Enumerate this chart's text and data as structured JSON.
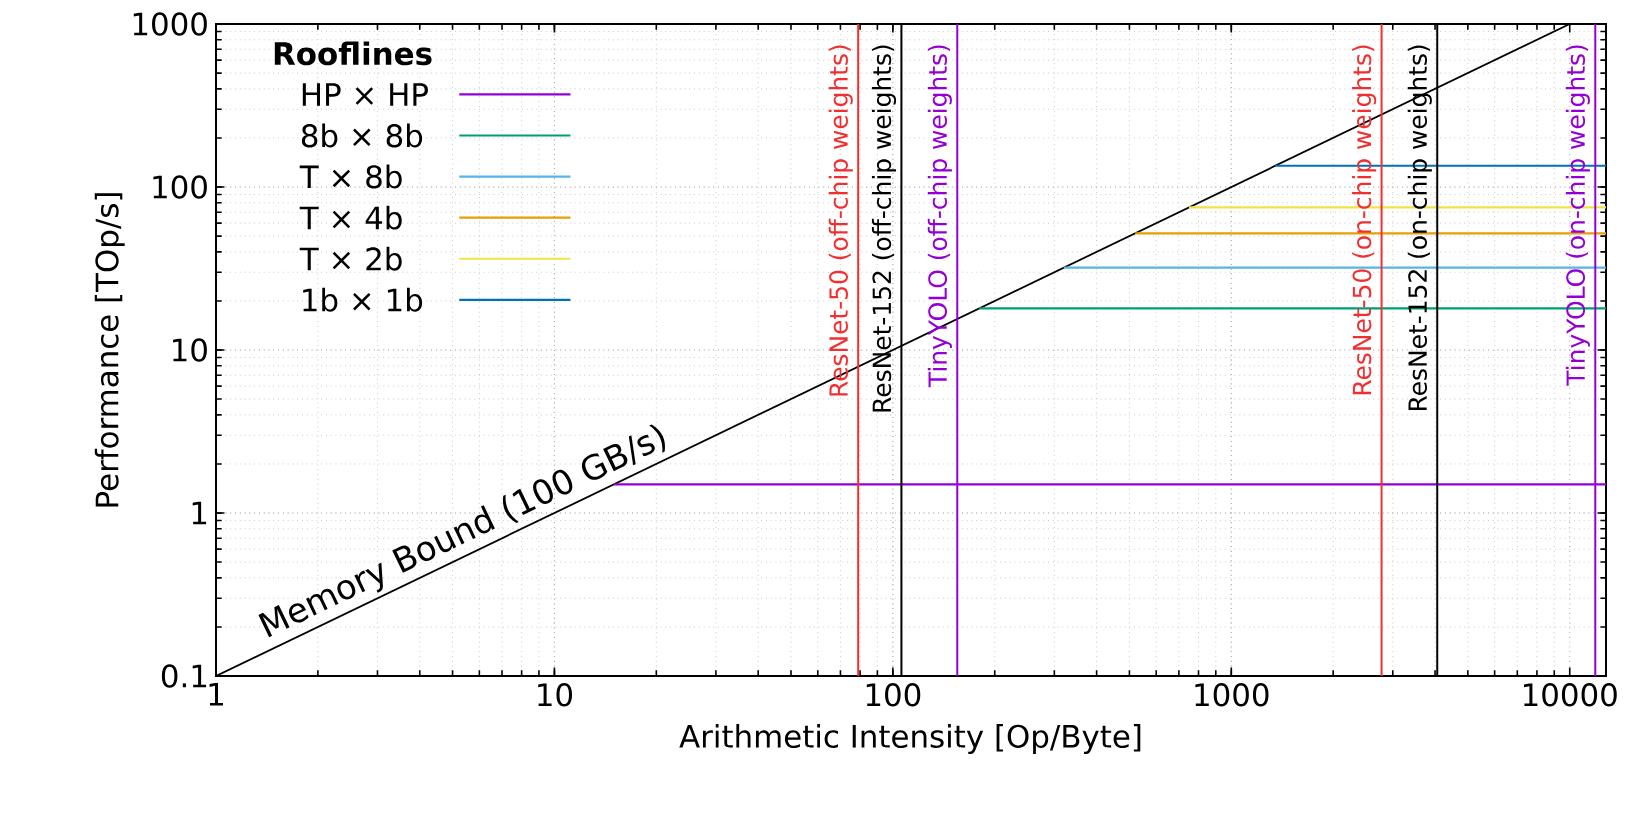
{
  "chart_data": {
    "type": "line",
    "xlabel": "Arithmetic Intensity [Op/Byte]",
    "ylabel": "Performance [TOp/s]",
    "legend_title": "Rooflines",
    "log": "xy",
    "grid": true,
    "legend": "top left",
    "marker": "none",
    "line_style": "solid",
    "xlim": [
      1,
      12800
    ],
    "ylim": [
      0.1,
      1000
    ],
    "xticks": [
      1,
      10,
      100,
      1000,
      10000
    ],
    "yticks": [
      0.1,
      1,
      10,
      100,
      1000
    ],
    "series": [
      {
        "name": "Memory Bound (100 GB/s)",
        "color": "#000000",
        "x": [
          1,
          10000
        ],
        "values": [
          0.1,
          1000
        ]
      },
      {
        "name": "HP × HP",
        "color": "#9400d3",
        "x": [
          15,
          12800
        ],
        "values": [
          1.5,
          1.5
        ]
      },
      {
        "name": "8b × 8b",
        "color": "#009e73",
        "x": [
          180,
          12800
        ],
        "values": [
          18,
          18
        ]
      },
      {
        "name": "T × 8b",
        "color": "#56b4e9",
        "x": [
          320,
          12800
        ],
        "values": [
          32,
          32
        ]
      },
      {
        "name": "T × 4b",
        "color": "#e69f00",
        "x": [
          520,
          12800
        ],
        "values": [
          52,
          52
        ]
      },
      {
        "name": "T × 2b",
        "color": "#f0e442",
        "x": [
          750,
          12800
        ],
        "values": [
          75,
          75
        ]
      },
      {
        "name": "1b × 1b",
        "color": "#0072b2",
        "x": [
          1350,
          12800
        ],
        "values": [
          135,
          135
        ]
      }
    ],
    "ref_lines": [
      {
        "axis": "x",
        "value": 79,
        "label": "ResNet-50 (off-chip weights)",
        "color": "#f03030"
      },
      {
        "axis": "x",
        "value": 106,
        "label": "ResNet-152 (off-chip weights)",
        "color": "#000000"
      },
      {
        "axis": "x",
        "value": 155,
        "label": "TinyYOLO (off-chip weights)",
        "color": "#9400d3"
      },
      {
        "axis": "x",
        "value": 2780,
        "label": "ResNet-50 (on-chip weights)",
        "color": "#f03030"
      },
      {
        "axis": "x",
        "value": 4060,
        "label": "ResNet-152 (on-chip weights)",
        "color": "#000000"
      },
      {
        "axis": "x",
        "value": 11900,
        "label": "TinyYOLO (on-chip weights)",
        "color": "#9400d3"
      }
    ]
  }
}
